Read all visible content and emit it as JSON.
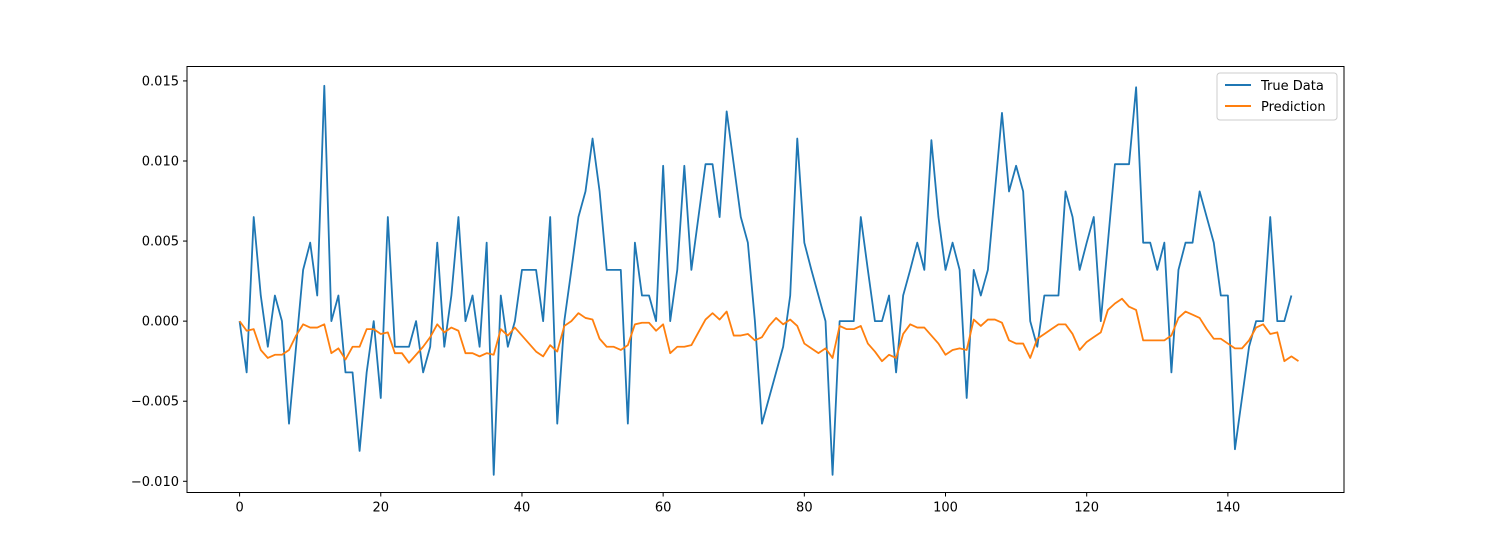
{
  "chart_data": {
    "type": "line",
    "title": "",
    "xlabel": "",
    "ylabel": "",
    "xlim": [
      -7.45,
      156.45
    ],
    "ylim": [
      -0.0107,
      0.0159
    ],
    "x_ticks": [
      0,
      20,
      40,
      60,
      80,
      100,
      120,
      140
    ],
    "y_ticks": [
      -0.01,
      -0.005,
      0.0,
      0.005,
      0.01,
      0.015
    ],
    "y_tick_labels": [
      "−0.010",
      "−0.005",
      "0.000",
      "0.005",
      "0.010",
      "0.015"
    ],
    "grid": false,
    "legend_position": "top-right",
    "series": [
      {
        "name": "True Data",
        "color": "#1f77b4",
        "values": [
          0.0,
          -0.0032,
          0.0065,
          0.0016,
          -0.0016,
          0.0016,
          0.0,
          -0.0064,
          -0.0016,
          0.0032,
          0.0049,
          0.0016,
          0.0147,
          0.0,
          0.0016,
          -0.0032,
          -0.0032,
          -0.0081,
          -0.0032,
          0.0,
          -0.0048,
          0.0065,
          -0.0016,
          -0.0016,
          -0.0016,
          0.0,
          -0.0032,
          -0.0016,
          0.0049,
          -0.0016,
          0.0016,
          0.0065,
          0.0,
          0.0016,
          -0.0016,
          0.0049,
          -0.0096,
          0.0016,
          -0.0016,
          0.0,
          0.0032,
          0.0032,
          0.0032,
          0.0,
          0.0065,
          -0.0064,
          0.0,
          0.0032,
          0.0065,
          0.0081,
          0.0114,
          0.0081,
          0.0032,
          0.0032,
          0.0032,
          -0.0064,
          0.0049,
          0.0016,
          0.0016,
          0.0,
          0.0097,
          0.0,
          0.0032,
          0.0097,
          0.0032,
          0.0065,
          0.0098,
          0.0098,
          0.0065,
          0.0131,
          0.0098,
          0.0065,
          0.0049,
          0.0,
          -0.0064,
          -0.0048,
          -0.0032,
          -0.0016,
          0.0016,
          0.0114,
          0.0049,
          0.0032,
          0.0016,
          0.0,
          -0.0096,
          0.0,
          0.0,
          0.0,
          0.0065,
          0.0032,
          0.0,
          0.0,
          0.0016,
          -0.0032,
          0.0016,
          0.0032,
          0.0049,
          0.0032,
          0.0113,
          0.0065,
          0.0032,
          0.0049,
          0.0032,
          -0.0048,
          0.0032,
          0.0016,
          0.0032,
          0.0081,
          0.013,
          0.0081,
          0.0097,
          0.0081,
          0.0,
          -0.0016,
          0.0016,
          0.0016,
          0.0016,
          0.0081,
          0.0065,
          0.0032,
          0.0049,
          0.0065,
          0.0,
          0.0049,
          0.0098,
          0.0098,
          0.0098,
          0.0146,
          0.0049,
          0.0049,
          0.0032,
          0.0049,
          -0.0032,
          0.0032,
          0.0049,
          0.0049,
          0.0081,
          0.0065,
          0.0049,
          0.0016,
          0.0016,
          -0.008,
          -0.0048,
          -0.0016,
          0.0,
          0.0,
          0.0065,
          0.0,
          0.0,
          0.0016
        ]
      },
      {
        "name": "Prediction",
        "color": "#ff7f0e",
        "values": [
          0.0,
          -0.0006,
          -0.0005,
          -0.0018,
          -0.0023,
          -0.0021,
          -0.0021,
          -0.0018,
          -0.0009,
          -0.0002,
          -0.0004,
          -0.0004,
          -0.0002,
          -0.002,
          -0.0017,
          -0.0024,
          -0.0016,
          -0.0016,
          -0.0005,
          -0.0005,
          -0.0008,
          -0.0007,
          -0.002,
          -0.002,
          -0.0026,
          -0.0021,
          -0.0016,
          -0.001,
          -0.0002,
          -0.0007,
          -0.0004,
          -0.0006,
          -0.002,
          -0.002,
          -0.0022,
          -0.002,
          -0.0021,
          -0.0005,
          -0.0009,
          -0.0004,
          -0.0009,
          -0.0014,
          -0.0019,
          -0.0022,
          -0.0015,
          -0.0019,
          -0.0003,
          0.0,
          0.0005,
          0.0002,
          0.0001,
          -0.0011,
          -0.0016,
          -0.0016,
          -0.0018,
          -0.0015,
          -0.0002,
          -0.0001,
          -0.0001,
          -0.0006,
          -0.0002,
          -0.002,
          -0.0016,
          -0.0016,
          -0.0015,
          -0.0007,
          0.0001,
          0.0005,
          0.0001,
          0.0006,
          -0.0009,
          -0.0009,
          -0.0008,
          -0.0012,
          -0.001,
          -0.0003,
          0.0002,
          -0.0002,
          0.0001,
          -0.0003,
          -0.0014,
          -0.0017,
          -0.002,
          -0.0017,
          -0.0023,
          -0.0003,
          -0.0005,
          -0.0005,
          -0.0003,
          -0.0014,
          -0.0019,
          -0.0025,
          -0.0021,
          -0.0023,
          -0.0008,
          -0.0002,
          -0.0004,
          -0.0004,
          -0.0009,
          -0.0014,
          -0.0021,
          -0.0018,
          -0.0017,
          -0.0018,
          0.0001,
          -0.0003,
          0.0001,
          0.0001,
          -0.0001,
          -0.0012,
          -0.0014,
          -0.0014,
          -0.0023,
          -0.0011,
          -0.0008,
          -0.0005,
          -0.0002,
          -0.0002,
          -0.0008,
          -0.0018,
          -0.0013,
          -0.001,
          -0.0007,
          0.0007,
          0.0011,
          0.0014,
          0.0009,
          0.0007,
          -0.0012,
          -0.0012,
          -0.0012,
          -0.0012,
          -0.0009,
          0.0002,
          0.0006,
          0.0004,
          0.0002,
          -0.0005,
          -0.0011,
          -0.0011,
          -0.0014,
          -0.0017,
          -0.0017,
          -0.0012,
          -0.0004,
          -0.0002,
          -0.0008,
          -0.0007,
          -0.0025,
          -0.0022,
          -0.0025
        ]
      }
    ]
  }
}
